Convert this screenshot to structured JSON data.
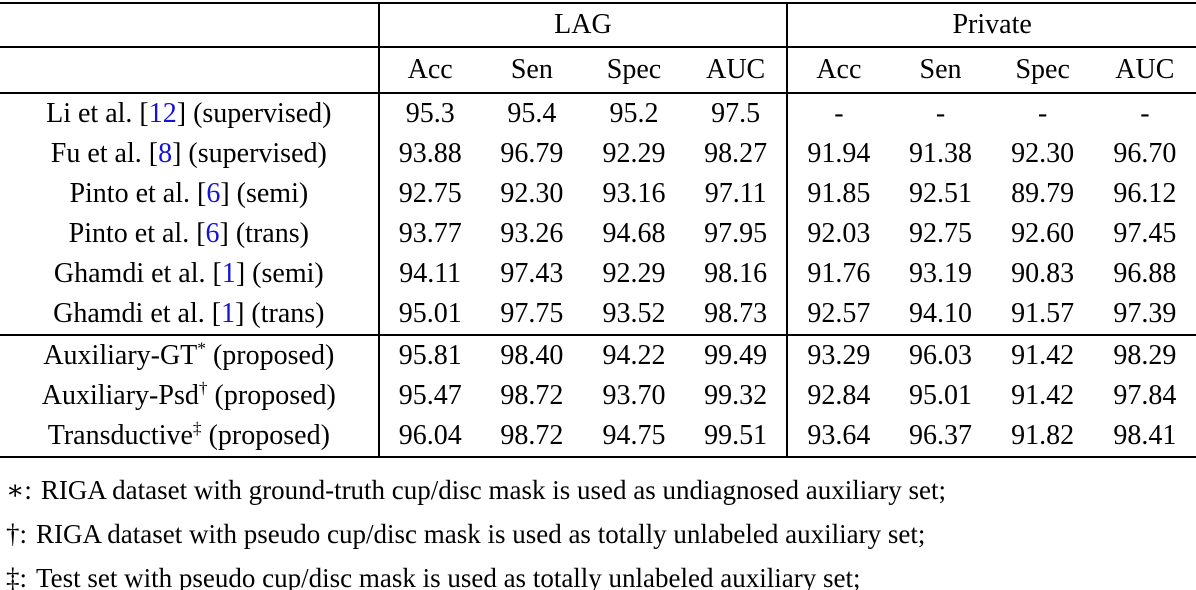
{
  "accent_colors": {
    "citation_blue": "#1414d2",
    "text_black": "#000000",
    "background": "#ffffff"
  },
  "table": {
    "group_headers": [
      {
        "label": "LAG"
      },
      {
        "label": "Private"
      }
    ],
    "metric_headers": [
      "Acc",
      "Sen",
      "Spec",
      "AUC"
    ],
    "rows": [
      {
        "method": {
          "name": "Li et al.",
          "cite": "12",
          "sup": "",
          "note": "(supervised)"
        },
        "group_start": false,
        "lag": [
          {
            "v": "95.3",
            "b": false
          },
          {
            "v": "95.4",
            "b": false
          },
          {
            "v": "95.2",
            "b": true
          },
          {
            "v": "97.5",
            "b": false
          }
        ],
        "private": [
          {
            "v": "-",
            "b": false
          },
          {
            "v": "-",
            "b": false
          },
          {
            "v": "-",
            "b": false
          },
          {
            "v": "-",
            "b": false
          }
        ]
      },
      {
        "method": {
          "name": "Fu et al.",
          "cite": "8",
          "sup": "",
          "note": "(supervised)"
        },
        "group_start": false,
        "lag": [
          {
            "v": "93.88",
            "b": false
          },
          {
            "v": "96.79",
            "b": false
          },
          {
            "v": "92.29",
            "b": false
          },
          {
            "v": "98.27",
            "b": false
          }
        ],
        "private": [
          {
            "v": "91.94",
            "b": false
          },
          {
            "v": "91.38",
            "b": false
          },
          {
            "v": "92.30",
            "b": false
          },
          {
            "v": "96.70",
            "b": false
          }
        ]
      },
      {
        "method": {
          "name": "Pinto et al.",
          "cite": "6",
          "sup": "",
          "note": "(semi)"
        },
        "group_start": false,
        "lag": [
          {
            "v": "92.75",
            "b": false
          },
          {
            "v": "92.30",
            "b": false
          },
          {
            "v": "93.16",
            "b": false
          },
          {
            "v": "97.11",
            "b": false
          }
        ],
        "private": [
          {
            "v": "91.85",
            "b": false
          },
          {
            "v": "92.51",
            "b": false
          },
          {
            "v": "89.79",
            "b": false
          },
          {
            "v": "96.12",
            "b": false
          }
        ]
      },
      {
        "method": {
          "name": "Pinto et al.",
          "cite": "6",
          "sup": "",
          "note": "(trans)"
        },
        "group_start": false,
        "lag": [
          {
            "v": "93.77",
            "b": false
          },
          {
            "v": "93.26",
            "b": false
          },
          {
            "v": "94.68",
            "b": false
          },
          {
            "v": "97.95",
            "b": false
          }
        ],
        "private": [
          {
            "v": "92.03",
            "b": false
          },
          {
            "v": "92.75",
            "b": false
          },
          {
            "v": "92.60",
            "b": true
          },
          {
            "v": "97.45",
            "b": false
          }
        ]
      },
      {
        "method": {
          "name": "Ghamdi et al.",
          "cite": "1",
          "sup": "",
          "note": "(semi)"
        },
        "group_start": false,
        "lag": [
          {
            "v": "94.11",
            "b": false
          },
          {
            "v": "97.43",
            "b": false
          },
          {
            "v": "92.29",
            "b": false
          },
          {
            "v": "98.16",
            "b": false
          }
        ],
        "private": [
          {
            "v": "91.76",
            "b": false
          },
          {
            "v": "93.19",
            "b": false
          },
          {
            "v": "90.83",
            "b": false
          },
          {
            "v": "96.88",
            "b": false
          }
        ]
      },
      {
        "method": {
          "name": "Ghamdi et al.",
          "cite": "1",
          "sup": "",
          "note": "(trans)"
        },
        "group_start": false,
        "lag": [
          {
            "v": "95.01",
            "b": false
          },
          {
            "v": "97.75",
            "b": false
          },
          {
            "v": "93.52",
            "b": false
          },
          {
            "v": "98.73",
            "b": false
          }
        ],
        "private": [
          {
            "v": "92.57",
            "b": false
          },
          {
            "v": "94.10",
            "b": false
          },
          {
            "v": "91.57",
            "b": false
          },
          {
            "v": "97.39",
            "b": false
          }
        ]
      },
      {
        "method": {
          "name": "Auxiliary-GT",
          "cite": "",
          "sup": "*",
          "note": "(proposed)"
        },
        "group_start": true,
        "lag": [
          {
            "v": "95.81",
            "b": false
          },
          {
            "v": "98.40",
            "b": false
          },
          {
            "v": "94.22",
            "b": false
          },
          {
            "v": "99.49",
            "b": false
          }
        ],
        "private": [
          {
            "v": "93.29",
            "b": false
          },
          {
            "v": "96.03",
            "b": false
          },
          {
            "v": "91.42",
            "b": false
          },
          {
            "v": "98.29",
            "b": false
          }
        ]
      },
      {
        "method": {
          "name": "Auxiliary-Psd",
          "cite": "",
          "sup": "†",
          "note": "(proposed)"
        },
        "group_start": false,
        "lag": [
          {
            "v": "95.47",
            "b": false
          },
          {
            "v": "98.72",
            "b": true
          },
          {
            "v": "93.70",
            "b": false
          },
          {
            "v": "99.32",
            "b": false
          }
        ],
        "private": [
          {
            "v": "92.84",
            "b": false
          },
          {
            "v": "95.01",
            "b": false
          },
          {
            "v": "91.42",
            "b": false
          },
          {
            "v": "97.84",
            "b": false
          }
        ]
      },
      {
        "method": {
          "name": "Transductive",
          "cite": "",
          "sup": "‡",
          "note": "(proposed)"
        },
        "group_start": false,
        "lag": [
          {
            "v": "96.04",
            "b": true
          },
          {
            "v": "98.72",
            "b": true
          },
          {
            "v": "94.75",
            "b": false
          },
          {
            "v": "99.51",
            "b": true
          }
        ],
        "private": [
          {
            "v": "93.64",
            "b": true
          },
          {
            "v": "96.37",
            "b": true
          },
          {
            "v": "91.82",
            "b": false
          },
          {
            "v": "98.41",
            "b": true
          }
        ]
      }
    ]
  },
  "footnotes": [
    {
      "symbol": "∗:",
      "text": "RIGA dataset with ground-truth cup/disc mask is used as undiagnosed auxiliary set;"
    },
    {
      "symbol": "†:",
      "text": "RIGA dataset with pseudo cup/disc mask is used as totally unlabeled auxiliary set;"
    },
    {
      "symbol": "‡:",
      "text": "Test set with pseudo cup/disc mask is used as totally unlabeled auxiliary set;"
    }
  ]
}
